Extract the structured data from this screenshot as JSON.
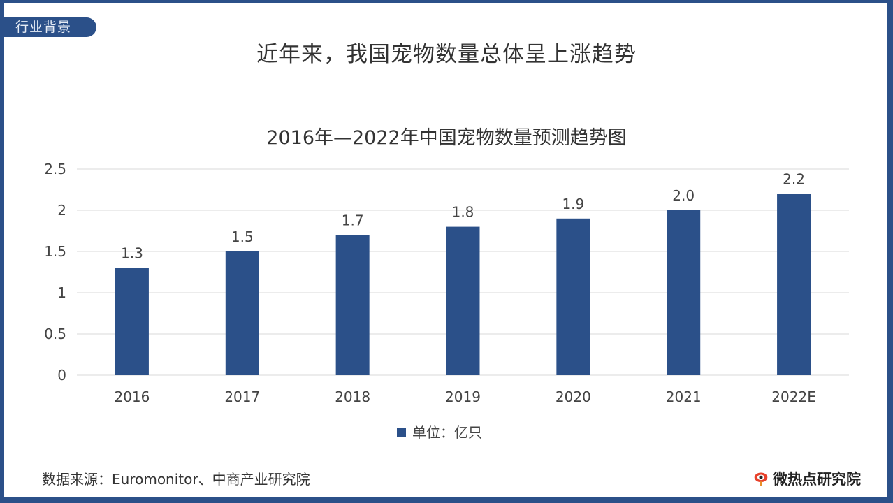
{
  "badge": "行业背景",
  "headline": "近年来，我国宠物数量总体呈上涨趋势",
  "source": "数据来源：Euromonitor、中商产业研究院",
  "logo_text": "微热点研究院",
  "chart_data": {
    "type": "bar",
    "title": "2016年—2022年中国宠物数量预测趋势图",
    "categories": [
      "2016",
      "2017",
      "2018",
      "2019",
      "2020",
      "2021",
      "2022E"
    ],
    "series": [
      {
        "name": "单位：亿只",
        "values": [
          1.3,
          1.5,
          1.7,
          1.8,
          1.9,
          2.0,
          2.2
        ]
      }
    ],
    "data_labels": [
      "1.3",
      "1.5",
      "1.7",
      "1.8",
      "1.9",
      "2.0",
      "2.2"
    ],
    "yticks": [
      "0",
      "0.5",
      "1",
      "1.5",
      "2",
      "2.5"
    ],
    "ylim": [
      0,
      2.5
    ],
    "grid": true,
    "legend_position": "bottom",
    "bar_color": "#2b5089"
  }
}
